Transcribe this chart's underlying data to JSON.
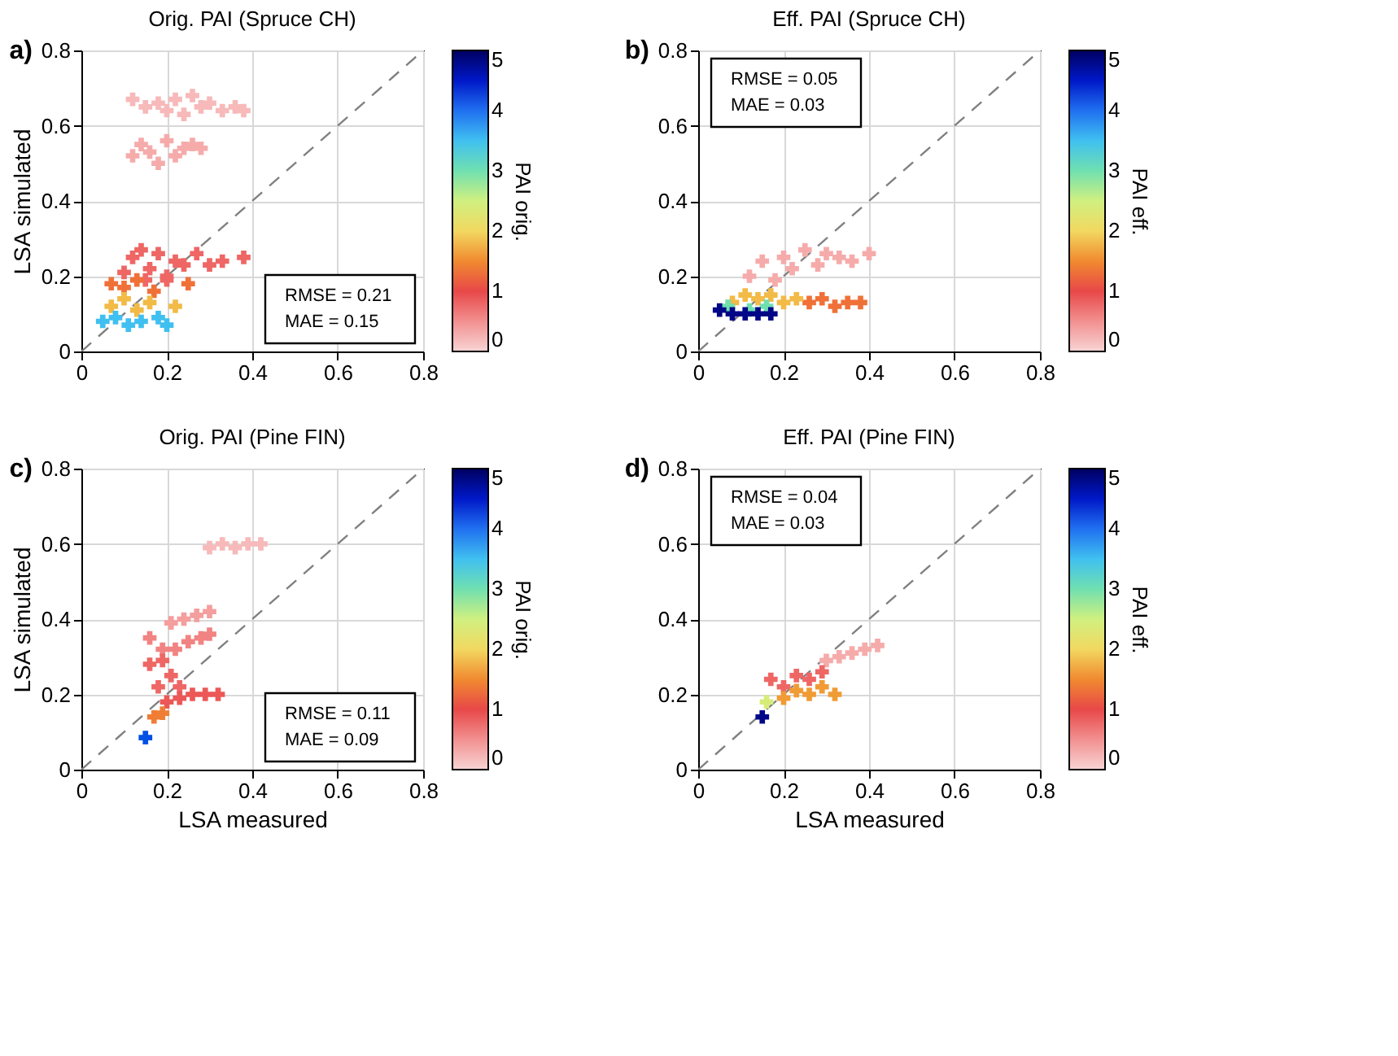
{
  "chart_data": [
    {
      "type": "scatter",
      "title": "Orig. PAI (Spruce CH)",
      "ylabel": "LSA simulated",
      "clabel": "PAI orig.",
      "xlim": [
        0,
        0.8
      ],
      "ylim": [
        0,
        0.8
      ],
      "xticks": [
        0,
        0.2,
        0.4,
        0.6,
        0.8
      ],
      "yticks": [
        0,
        0.2,
        0.4,
        0.6,
        0.8
      ],
      "clim": [
        0,
        5
      ],
      "cticks": [
        0,
        1,
        2,
        3,
        4,
        5
      ],
      "grid": true,
      "marker": "cross",
      "annotations": [
        "a)",
        "RMSE = 0.21",
        "MAE = 0.15"
      ],
      "series": [
        {
          "x": [
            0.12,
            0.15,
            0.18,
            0.2,
            0.22,
            0.24,
            0.26,
            0.28,
            0.3,
            0.33,
            0.36,
            0.38
          ],
          "values": [
            0.67,
            0.65,
            0.66,
            0.64,
            0.67,
            0.63,
            0.68,
            0.65,
            0.66,
            0.64,
            0.65,
            0.64
          ],
          "cvalues": [
            0.2,
            0.2,
            0.2,
            0.2,
            0.2,
            0.2,
            0.2,
            0.2,
            0.2,
            0.2,
            0.2,
            0.2
          ]
        },
        {
          "x": [
            0.12,
            0.14,
            0.16,
            0.18,
            0.2,
            0.22,
            0.24,
            0.26,
            0.28
          ],
          "values": [
            0.52,
            0.55,
            0.53,
            0.5,
            0.56,
            0.52,
            0.54,
            0.55,
            0.54
          ],
          "cvalues": [
            0.3,
            0.3,
            0.3,
            0.3,
            0.3,
            0.3,
            0.3,
            0.3,
            0.3
          ]
        },
        {
          "x": [
            0.1,
            0.12,
            0.14,
            0.16,
            0.18,
            0.2,
            0.22,
            0.24,
            0.27,
            0.3,
            0.33,
            0.38,
            0.15,
            0.2
          ],
          "values": [
            0.21,
            0.25,
            0.27,
            0.22,
            0.26,
            0.2,
            0.24,
            0.23,
            0.26,
            0.23,
            0.24,
            0.25,
            0.19,
            0.19
          ],
          "cvalues": [
            0.8,
            0.8,
            0.8,
            0.8,
            0.8,
            0.8,
            0.8,
            0.8,
            0.8,
            0.8,
            0.8,
            0.8,
            0.8,
            0.8
          ]
        },
        {
          "x": [
            0.07,
            0.1,
            0.13,
            0.17,
            0.25
          ],
          "values": [
            0.18,
            0.17,
            0.19,
            0.16,
            0.18
          ],
          "cvalues": [
            1.3,
            1.3,
            1.3,
            1.3,
            1.3
          ]
        },
        {
          "x": [
            0.07,
            0.1,
            0.13,
            0.16,
            0.22
          ],
          "values": [
            0.12,
            0.14,
            0.11,
            0.13,
            0.12
          ],
          "cvalues": [
            1.8,
            1.8,
            1.8,
            1.8,
            1.8
          ]
        },
        {
          "x": [
            0.05,
            0.08,
            0.11,
            0.14,
            0.18,
            0.2
          ],
          "values": [
            0.08,
            0.09,
            0.07,
            0.08,
            0.09,
            0.07
          ],
          "cvalues": [
            3.5,
            3.5,
            3.5,
            3.5,
            3.5,
            3.5
          ]
        },
        {
          "type": "line",
          "color": "#808080",
          "line_style": "dashed",
          "marker": "none",
          "x": [
            0,
            0.8
          ],
          "values": [
            0,
            0.8
          ]
        }
      ]
    },
    {
      "type": "scatter",
      "title": "Eff. PAI (Spruce CH)",
      "clabel": "PAI eff.",
      "xlim": [
        0,
        0.8
      ],
      "ylim": [
        0,
        0.8
      ],
      "xticks": [
        0,
        0.2,
        0.4,
        0.6,
        0.8
      ],
      "yticks": [
        0,
        0.2,
        0.4,
        0.6,
        0.8
      ],
      "clim": [
        0,
        5
      ],
      "cticks": [
        0,
        1,
        2,
        3,
        4,
        5
      ],
      "grid": true,
      "marker": "cross",
      "annotations": [
        "b)",
        "RMSE = 0.05",
        "MAE = 0.03"
      ],
      "series": [
        {
          "x": [
            0.12,
            0.15,
            0.18,
            0.2,
            0.22,
            0.25,
            0.28,
            0.3,
            0.33,
            0.36,
            0.4
          ],
          "values": [
            0.2,
            0.24,
            0.19,
            0.25,
            0.22,
            0.27,
            0.23,
            0.26,
            0.25,
            0.24,
            0.26
          ],
          "cvalues": [
            0.3,
            0.3,
            0.3,
            0.3,
            0.3,
            0.3,
            0.3,
            0.3,
            0.3,
            0.3,
            0.3
          ]
        },
        {
          "x": [
            0.26,
            0.29,
            0.32,
            0.35,
            0.38
          ],
          "values": [
            0.13,
            0.14,
            0.12,
            0.13,
            0.13
          ],
          "cvalues": [
            1.3,
            1.3,
            1.3,
            1.3,
            1.3
          ]
        },
        {
          "x": [
            0.08,
            0.11,
            0.14,
            0.17,
            0.2,
            0.23
          ],
          "values": [
            0.13,
            0.15,
            0.14,
            0.15,
            0.13,
            0.14
          ],
          "cvalues": [
            1.8,
            1.8,
            1.8,
            1.8,
            1.8,
            1.8
          ]
        },
        {
          "x": [
            0.07,
            0.12,
            0.16
          ],
          "values": [
            0.12,
            0.11,
            0.12
          ],
          "cvalues": [
            3,
            3,
            3
          ]
        },
        {
          "x": [
            0.05,
            0.08,
            0.11,
            0.14,
            0.17
          ],
          "values": [
            0.11,
            0.1,
            0.1,
            0.1,
            0.1
          ],
          "cvalues": [
            4.8,
            4.8,
            4.8,
            4.8,
            4.8
          ]
        },
        {
          "type": "line",
          "color": "#808080",
          "line_style": "dashed",
          "marker": "none",
          "x": [
            0,
            0.8
          ],
          "values": [
            0,
            0.8
          ]
        }
      ]
    },
    {
      "type": "scatter",
      "title": "Orig. PAI (Pine FIN)",
      "xlabel": "LSA measured",
      "ylabel": "LSA simulated",
      "clabel": "PAI orig.",
      "xlim": [
        0,
        0.8
      ],
      "ylim": [
        0,
        0.8
      ],
      "xticks": [
        0,
        0.2,
        0.4,
        0.6,
        0.8
      ],
      "yticks": [
        0,
        0.2,
        0.4,
        0.6,
        0.8
      ],
      "clim": [
        0,
        5
      ],
      "cticks": [
        0,
        1,
        2,
        3,
        4,
        5
      ],
      "grid": true,
      "marker": "cross",
      "annotations": [
        "c)",
        "RMSE = 0.11",
        "MAE = 0.09"
      ],
      "series": [
        {
          "x": [
            0.3,
            0.33,
            0.36,
            0.39,
            0.42
          ],
          "values": [
            0.59,
            0.6,
            0.59,
            0.6,
            0.6
          ],
          "cvalues": [
            0.2,
            0.2,
            0.2,
            0.2,
            0.2
          ]
        },
        {
          "x": [
            0.21,
            0.24,
            0.27,
            0.3
          ],
          "values": [
            0.39,
            0.4,
            0.41,
            0.42
          ],
          "cvalues": [
            0.4,
            0.4,
            0.4,
            0.4
          ]
        },
        {
          "x": [
            0.16,
            0.19,
            0.22,
            0.25,
            0.28,
            0.3
          ],
          "values": [
            0.35,
            0.32,
            0.32,
            0.34,
            0.35,
            0.36
          ],
          "cvalues": [
            0.6,
            0.6,
            0.6,
            0.6,
            0.6,
            0.6
          ]
        },
        {
          "x": [
            0.16,
            0.19,
            0.18,
            0.21,
            0.23
          ],
          "values": [
            0.28,
            0.29,
            0.22,
            0.25,
            0.22
          ],
          "cvalues": [
            0.8,
            0.8,
            0.8,
            0.8,
            0.8
          ]
        },
        {
          "x": [
            0.2,
            0.23,
            0.26,
            0.29,
            0.32
          ],
          "values": [
            0.18,
            0.19,
            0.2,
            0.2,
            0.2
          ],
          "cvalues": [
            0.9,
            0.9,
            0.9,
            0.9,
            0.9
          ]
        },
        {
          "x": [
            0.17,
            0.19
          ],
          "values": [
            0.14,
            0.15
          ],
          "cvalues": [
            1.4,
            1.4
          ]
        },
        {
          "x": [
            0.15
          ],
          "values": [
            0.085
          ],
          "cvalues": [
            4.2
          ]
        },
        {
          "type": "line",
          "color": "#808080",
          "line_style": "dashed",
          "marker": "none",
          "x": [
            0,
            0.8
          ],
          "values": [
            0,
            0.8
          ]
        }
      ]
    },
    {
      "type": "scatter",
      "title": "Eff. PAI (Pine FIN)",
      "xlabel": "LSA measured",
      "clabel": "PAI eff.",
      "xlim": [
        0,
        0.8
      ],
      "ylim": [
        0,
        0.8
      ],
      "xticks": [
        0,
        0.2,
        0.4,
        0.6,
        0.8
      ],
      "yticks": [
        0,
        0.2,
        0.4,
        0.6,
        0.8
      ],
      "clim": [
        0,
        5
      ],
      "cticks": [
        0,
        1,
        2,
        3,
        4,
        5
      ],
      "grid": true,
      "marker": "cross",
      "annotations": [
        "d)",
        "RMSE = 0.04",
        "MAE = 0.03"
      ],
      "series": [
        {
          "x": [
            0.3,
            0.33,
            0.36,
            0.39,
            0.42
          ],
          "values": [
            0.29,
            0.3,
            0.31,
            0.32,
            0.33
          ],
          "cvalues": [
            0.3,
            0.3,
            0.3,
            0.3,
            0.3
          ]
        },
        {
          "x": [
            0.17,
            0.2,
            0.23,
            0.26,
            0.29
          ],
          "values": [
            0.24,
            0.22,
            0.25,
            0.24,
            0.26
          ],
          "cvalues": [
            0.8,
            0.8,
            0.8,
            0.8,
            0.8
          ]
        },
        {
          "x": [
            0.2,
            0.23,
            0.26,
            0.29,
            0.32
          ],
          "values": [
            0.19,
            0.21,
            0.2,
            0.22,
            0.2
          ],
          "cvalues": [
            1.6,
            1.6,
            1.6,
            1.6,
            1.6
          ]
        },
        {
          "x": [
            0.16
          ],
          "values": [
            0.18
          ],
          "cvalues": [
            2.4
          ]
        },
        {
          "x": [
            0.15
          ],
          "values": [
            0.14
          ],
          "cvalues": [
            4.8
          ]
        },
        {
          "type": "line",
          "color": "#808080",
          "line_style": "dashed",
          "marker": "none",
          "x": [
            0,
            0.8
          ],
          "values": [
            0,
            0.8
          ]
        }
      ]
    }
  ]
}
